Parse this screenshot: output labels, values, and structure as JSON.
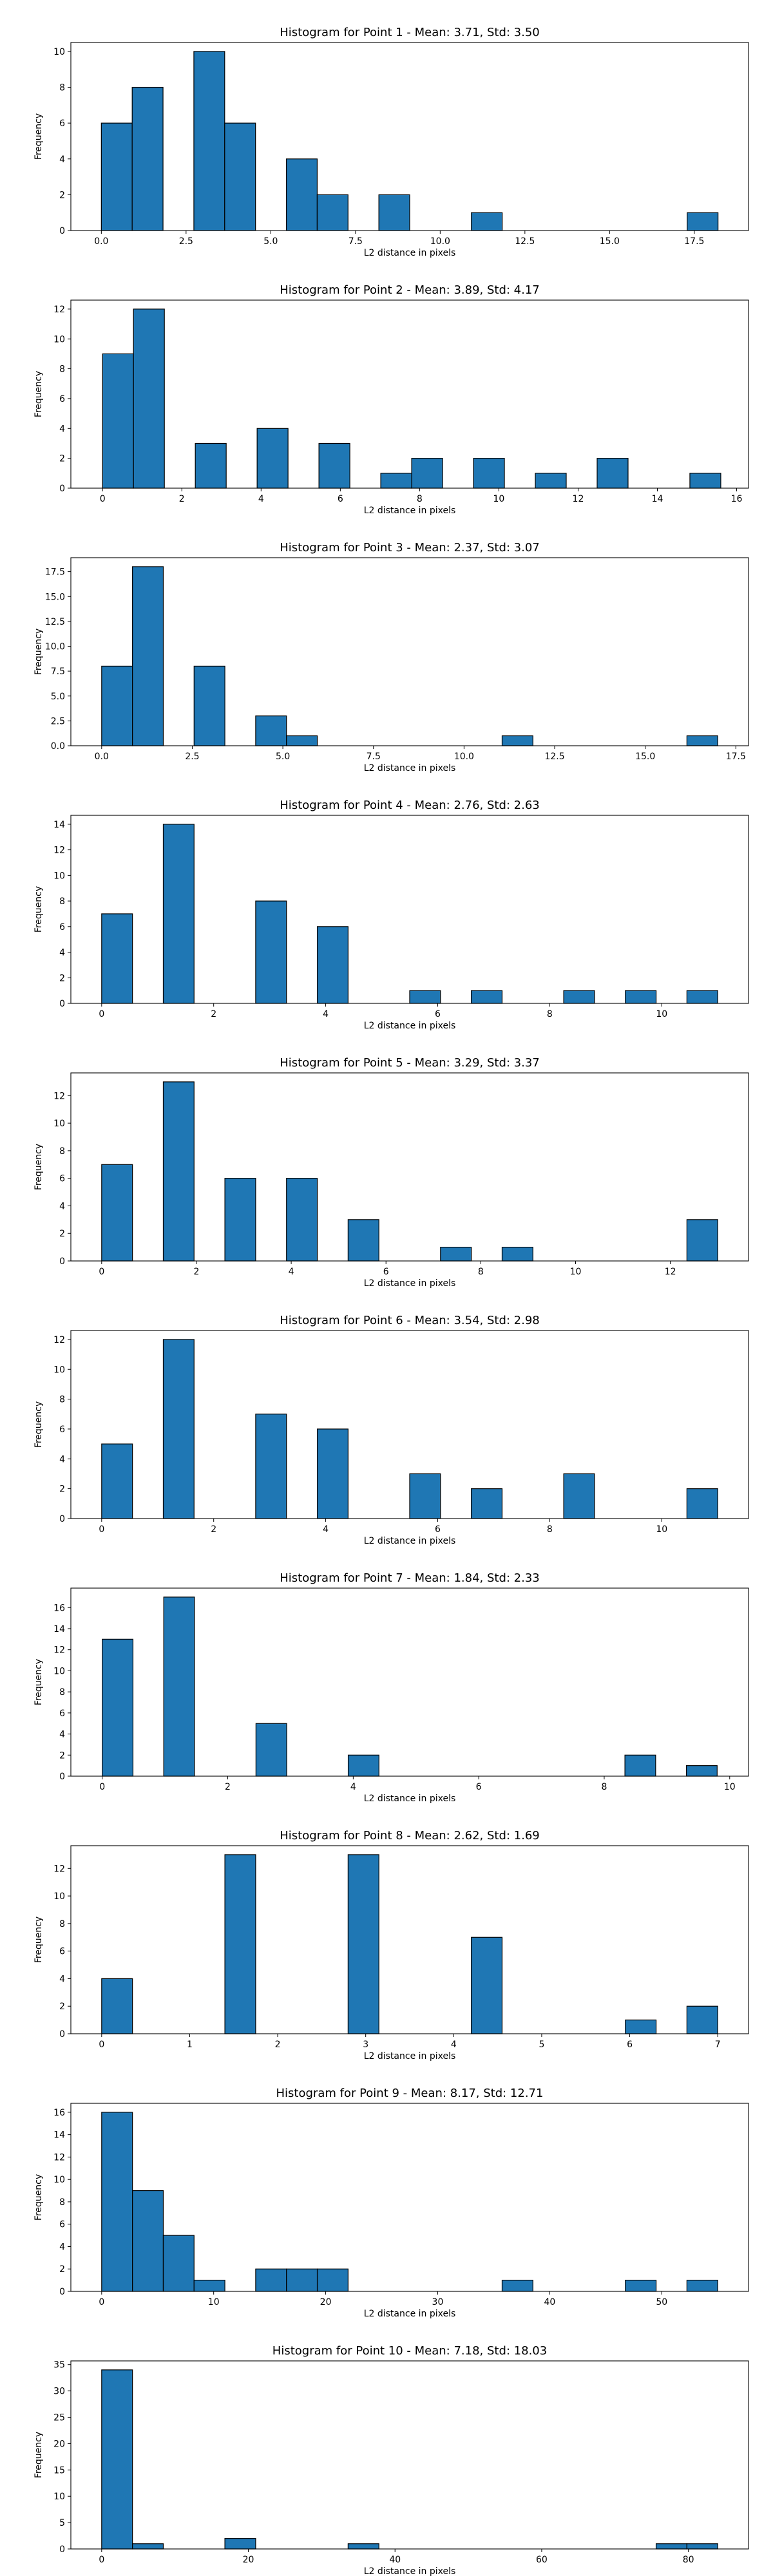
{
  "chart_data": [
    {
      "type": "bar",
      "title": "Histogram for Point 1 - Mean: 3.71, Std: 3.50",
      "xlabel": "L2 distance in pixels",
      "ylabel": "Frequency",
      "xlim": [
        -0.9,
        19.1
      ],
      "ylim": [
        0,
        10.5
      ],
      "xticks": [
        0.0,
        2.5,
        5.0,
        7.5,
        10.0,
        12.5,
        15.0,
        17.5
      ],
      "xtick_labels": [
        "0.0",
        "2.5",
        "5.0",
        "7.5",
        "10.0",
        "12.5",
        "15.0",
        "17.5"
      ],
      "yticks": [
        0,
        2,
        4,
        6,
        8,
        10
      ],
      "ytick_labels": [
        "0",
        "2",
        "4",
        "6",
        "8",
        "10"
      ],
      "color": "#1f77b4",
      "bars": [
        {
          "x0": 0.0,
          "x1": 0.91,
          "y": 6
        },
        {
          "x0": 0.91,
          "x1": 1.82,
          "y": 8
        },
        {
          "x0": 2.73,
          "x1": 3.64,
          "y": 10
        },
        {
          "x0": 3.64,
          "x1": 4.55,
          "y": 6
        },
        {
          "x0": 5.46,
          "x1": 6.37,
          "y": 4
        },
        {
          "x0": 6.37,
          "x1": 7.28,
          "y": 2
        },
        {
          "x0": 8.19,
          "x1": 9.1,
          "y": 2
        },
        {
          "x0": 10.92,
          "x1": 11.83,
          "y": 1
        },
        {
          "x0": 17.29,
          "x1": 18.2,
          "y": 1
        }
      ]
    },
    {
      "type": "bar",
      "title": "Histogram for Point 2 - Mean: 3.89, Std: 4.17",
      "xlabel": "L2 distance in pixels",
      "ylabel": "Frequency",
      "xlim": [
        -0.8,
        16.3
      ],
      "ylim": [
        0,
        12.6
      ],
      "xticks": [
        0,
        2,
        4,
        6,
        8,
        10,
        12,
        14,
        16
      ],
      "xtick_labels": [
        "0",
        "2",
        "4",
        "6",
        "8",
        "10",
        "12",
        "14",
        "16"
      ],
      "yticks": [
        0,
        2,
        4,
        6,
        8,
        10,
        12
      ],
      "ytick_labels": [
        "0",
        "2",
        "4",
        "6",
        "8",
        "10",
        "12"
      ],
      "color": "#1f77b4",
      "bars": [
        {
          "x0": 0.0,
          "x1": 0.78,
          "y": 9
        },
        {
          "x0": 0.78,
          "x1": 1.56,
          "y": 12
        },
        {
          "x0": 2.34,
          "x1": 3.12,
          "y": 3
        },
        {
          "x0": 3.9,
          "x1": 4.68,
          "y": 4
        },
        {
          "x0": 5.46,
          "x1": 6.24,
          "y": 3
        },
        {
          "x0": 7.02,
          "x1": 7.8,
          "y": 1
        },
        {
          "x0": 7.8,
          "x1": 8.58,
          "y": 2
        },
        {
          "x0": 9.36,
          "x1": 10.14,
          "y": 2
        },
        {
          "x0": 10.92,
          "x1": 11.7,
          "y": 1
        },
        {
          "x0": 12.48,
          "x1": 13.26,
          "y": 2
        },
        {
          "x0": 14.82,
          "x1": 15.6,
          "y": 1
        }
      ]
    },
    {
      "type": "bar",
      "title": "Histogram for Point 3 - Mean: 2.37, Std: 3.07",
      "xlabel": "L2 distance in pixels",
      "ylabel": "Frequency",
      "xlim": [
        -0.85,
        17.85
      ],
      "ylim": [
        0,
        18.9
      ],
      "xticks": [
        0.0,
        2.5,
        5.0,
        7.5,
        10.0,
        12.5,
        15.0,
        17.5
      ],
      "xtick_labels": [
        "0.0",
        "2.5",
        "5.0",
        "7.5",
        "10.0",
        "12.5",
        "15.0",
        "17.5"
      ],
      "yticks": [
        0,
        2.5,
        5,
        7.5,
        10,
        12.5,
        15,
        17.5
      ],
      "ytick_labels": [
        "0.0",
        "2.5",
        "5.0",
        "7.5",
        "10.0",
        "12.5",
        "15.0",
        "17.5"
      ],
      "color": "#1f77b4",
      "bars": [
        {
          "x0": 0.0,
          "x1": 0.85,
          "y": 8
        },
        {
          "x0": 0.85,
          "x1": 1.7,
          "y": 18
        },
        {
          "x0": 2.55,
          "x1": 3.4,
          "y": 8
        },
        {
          "x0": 4.25,
          "x1": 5.1,
          "y": 3
        },
        {
          "x0": 5.1,
          "x1": 5.95,
          "y": 1
        },
        {
          "x0": 11.05,
          "x1": 11.9,
          "y": 1
        },
        {
          "x0": 16.15,
          "x1": 17.0,
          "y": 1
        }
      ]
    },
    {
      "type": "bar",
      "title": "Histogram for Point 4 - Mean: 2.76, Std: 2.63",
      "xlabel": "L2 distance in pixels",
      "ylabel": "Frequency",
      "xlim": [
        -0.55,
        11.55
      ],
      "ylim": [
        0,
        14.7
      ],
      "xticks": [
        0,
        2,
        4,
        6,
        8,
        10
      ],
      "xtick_labels": [
        "0",
        "2",
        "4",
        "6",
        "8",
        "10"
      ],
      "yticks": [
        0,
        2,
        4,
        6,
        8,
        10,
        12,
        14
      ],
      "ytick_labels": [
        "0",
        "2",
        "4",
        "6",
        "8",
        "10",
        "12",
        "14"
      ],
      "color": "#1f77b4",
      "bars": [
        {
          "x0": 0.0,
          "x1": 0.55,
          "y": 7
        },
        {
          "x0": 1.1,
          "x1": 1.65,
          "y": 14
        },
        {
          "x0": 2.75,
          "x1": 3.3,
          "y": 8
        },
        {
          "x0": 3.85,
          "x1": 4.4,
          "y": 6
        },
        {
          "x0": 5.5,
          "x1": 6.05,
          "y": 1
        },
        {
          "x0": 6.6,
          "x1": 7.15,
          "y": 1
        },
        {
          "x0": 8.25,
          "x1": 8.8,
          "y": 1
        },
        {
          "x0": 9.35,
          "x1": 9.9,
          "y": 1
        },
        {
          "x0": 10.45,
          "x1": 11.0,
          "y": 1
        }
      ]
    },
    {
      "type": "bar",
      "title": "Histogram for Point 5 - Mean: 3.29, Std: 3.37",
      "xlabel": "L2 distance in pixels",
      "ylabel": "Frequency",
      "xlim": [
        -0.65,
        13.65
      ],
      "ylim": [
        0,
        13.65
      ],
      "xticks": [
        0,
        2,
        4,
        6,
        8,
        10,
        12
      ],
      "xtick_labels": [
        "0",
        "2",
        "4",
        "6",
        "8",
        "10",
        "12"
      ],
      "yticks": [
        0,
        2,
        4,
        6,
        8,
        10,
        12
      ],
      "ytick_labels": [
        "0",
        "2",
        "4",
        "6",
        "8",
        "10",
        "12"
      ],
      "color": "#1f77b4",
      "bars": [
        {
          "x0": 0.0,
          "x1": 0.65,
          "y": 7
        },
        {
          "x0": 1.3,
          "x1": 1.95,
          "y": 13
        },
        {
          "x0": 2.6,
          "x1": 3.25,
          "y": 6
        },
        {
          "x0": 3.9,
          "x1": 4.55,
          "y": 6
        },
        {
          "x0": 5.2,
          "x1": 5.85,
          "y": 3
        },
        {
          "x0": 7.15,
          "x1": 7.8,
          "y": 1
        },
        {
          "x0": 8.45,
          "x1": 9.1,
          "y": 1
        },
        {
          "x0": 12.35,
          "x1": 13.0,
          "y": 3
        }
      ]
    },
    {
      "type": "bar",
      "title": "Histogram for Point 6 - Mean: 3.54, Std: 2.98",
      "xlabel": "L2 distance in pixels",
      "ylabel": "Frequency",
      "xlim": [
        -0.55,
        11.55
      ],
      "ylim": [
        0,
        12.6
      ],
      "xticks": [
        0,
        2,
        4,
        6,
        8,
        10
      ],
      "xtick_labels": [
        "0",
        "2",
        "4",
        "6",
        "8",
        "10"
      ],
      "yticks": [
        0,
        2,
        4,
        6,
        8,
        10,
        12
      ],
      "ytick_labels": [
        "0",
        "2",
        "4",
        "6",
        "8",
        "10",
        "12"
      ],
      "color": "#1f77b4",
      "bars": [
        {
          "x0": 0.0,
          "x1": 0.55,
          "y": 5
        },
        {
          "x0": 1.1,
          "x1": 1.65,
          "y": 12
        },
        {
          "x0": 2.75,
          "x1": 3.3,
          "y": 7
        },
        {
          "x0": 3.85,
          "x1": 4.4,
          "y": 6
        },
        {
          "x0": 5.5,
          "x1": 6.05,
          "y": 3
        },
        {
          "x0": 6.6,
          "x1": 7.15,
          "y": 2
        },
        {
          "x0": 8.25,
          "x1": 8.8,
          "y": 3
        },
        {
          "x0": 10.45,
          "x1": 11.0,
          "y": 2
        }
      ]
    },
    {
      "type": "bar",
      "title": "Histogram for Point 7 - Mean: 1.84, Std: 2.33",
      "xlabel": "L2 distance in pixels",
      "ylabel": "Frequency",
      "xlim": [
        -0.5,
        10.3
      ],
      "ylim": [
        0,
        17.85
      ],
      "xticks": [
        0,
        2,
        4,
        6,
        8,
        10
      ],
      "xtick_labels": [
        "0",
        "2",
        "4",
        "6",
        "8",
        "10"
      ],
      "yticks": [
        0,
        2,
        4,
        6,
        8,
        10,
        12,
        14,
        16
      ],
      "ytick_labels": [
        "0",
        "2",
        "4",
        "6",
        "8",
        "10",
        "12",
        "14",
        "16"
      ],
      "color": "#1f77b4",
      "bars": [
        {
          "x0": 0.0,
          "x1": 0.49,
          "y": 13
        },
        {
          "x0": 0.98,
          "x1": 1.47,
          "y": 17
        },
        {
          "x0": 2.45,
          "x1": 2.94,
          "y": 5
        },
        {
          "x0": 3.92,
          "x1": 4.41,
          "y": 2
        },
        {
          "x0": 8.33,
          "x1": 8.82,
          "y": 2
        },
        {
          "x0": 9.31,
          "x1": 9.8,
          "y": 1
        }
      ]
    },
    {
      "type": "bar",
      "title": "Histogram for Point 8 - Mean: 2.62, Std: 1.69",
      "xlabel": "L2 distance in pixels",
      "ylabel": "Frequency",
      "xlim": [
        -0.35,
        7.35
      ],
      "ylim": [
        0,
        13.65
      ],
      "xticks": [
        0,
        1,
        2,
        3,
        4,
        5,
        6,
        7
      ],
      "xtick_labels": [
        "0",
        "1",
        "2",
        "3",
        "4",
        "5",
        "6",
        "7"
      ],
      "yticks": [
        0,
        2,
        4,
        6,
        8,
        10,
        12
      ],
      "ytick_labels": [
        "0",
        "2",
        "4",
        "6",
        "8",
        "10",
        "12"
      ],
      "color": "#1f77b4",
      "bars": [
        {
          "x0": 0.0,
          "x1": 0.35,
          "y": 4
        },
        {
          "x0": 1.4,
          "x1": 1.75,
          "y": 13
        },
        {
          "x0": 2.8,
          "x1": 3.15,
          "y": 13
        },
        {
          "x0": 4.2,
          "x1": 4.55,
          "y": 7
        },
        {
          "x0": 5.95,
          "x1": 6.3,
          "y": 1
        },
        {
          "x0": 6.65,
          "x1": 7.0,
          "y": 2
        }
      ]
    },
    {
      "type": "bar",
      "title": "Histogram for Point 9 - Mean: 8.17, Std: 12.71",
      "xlabel": "L2 distance in pixels",
      "ylabel": "Frequency",
      "xlim": [
        -2.75,
        57.75
      ],
      "ylim": [
        0,
        16.8
      ],
      "xticks": [
        0,
        10,
        20,
        30,
        40,
        50
      ],
      "xtick_labels": [
        "0",
        "10",
        "20",
        "30",
        "40",
        "50"
      ],
      "yticks": [
        0,
        2,
        4,
        6,
        8,
        10,
        12,
        14,
        16
      ],
      "ytick_labels": [
        "0",
        "2",
        "4",
        "6",
        "8",
        "10",
        "12",
        "14",
        "16"
      ],
      "color": "#1f77b4",
      "bars": [
        {
          "x0": 0.0,
          "x1": 2.75,
          "y": 16
        },
        {
          "x0": 2.75,
          "x1": 5.5,
          "y": 9
        },
        {
          "x0": 5.5,
          "x1": 8.25,
          "y": 5
        },
        {
          "x0": 8.25,
          "x1": 11.0,
          "y": 1
        },
        {
          "x0": 13.75,
          "x1": 16.5,
          "y": 2
        },
        {
          "x0": 16.5,
          "x1": 19.25,
          "y": 2
        },
        {
          "x0": 19.25,
          "x1": 22.0,
          "y": 2
        },
        {
          "x0": 35.75,
          "x1": 38.5,
          "y": 1
        },
        {
          "x0": 46.75,
          "x1": 49.5,
          "y": 1
        },
        {
          "x0": 52.25,
          "x1": 55.0,
          "y": 1
        }
      ]
    },
    {
      "type": "bar",
      "title": "Histogram for Point 10 - Mean: 7.18, Std: 18.03",
      "xlabel": "L2 distance in pixels",
      "ylabel": "Frequency",
      "xlim": [
        -4.2,
        88.2
      ],
      "ylim": [
        0,
        35.7
      ],
      "xticks": [
        0,
        20,
        40,
        60,
        80
      ],
      "xtick_labels": [
        "0",
        "20",
        "40",
        "60",
        "80"
      ],
      "yticks": [
        0,
        5,
        10,
        15,
        20,
        25,
        30,
        35
      ],
      "ytick_labels": [
        "0",
        "5",
        "10",
        "15",
        "20",
        "25",
        "30",
        "35"
      ],
      "color": "#1f77b4",
      "bars": [
        {
          "x0": 0.0,
          "x1": 4.2,
          "y": 34
        },
        {
          "x0": 4.2,
          "x1": 8.4,
          "y": 1
        },
        {
          "x0": 16.8,
          "x1": 21.0,
          "y": 2
        },
        {
          "x0": 33.6,
          "x1": 37.8,
          "y": 1
        },
        {
          "x0": 75.6,
          "x1": 79.8,
          "y": 1
        },
        {
          "x0": 79.8,
          "x1": 84.0,
          "y": 1
        }
      ]
    }
  ]
}
